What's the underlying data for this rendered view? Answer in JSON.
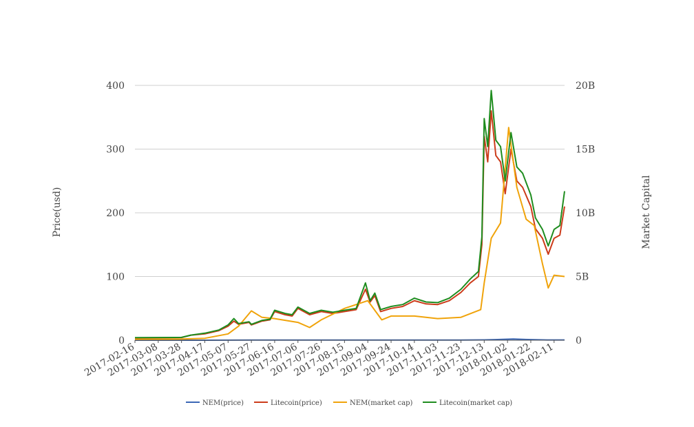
{
  "chart_data": {
    "type": "line",
    "title": "",
    "ylabel_left": "Price(usd)",
    "ylabel_right": "Market Capital",
    "xlabel": "",
    "grid": true,
    "legend_position": "bottom",
    "x_range": [
      "2017-02-16",
      "2018-02-20"
    ],
    "ylim_left": [
      0,
      400
    ],
    "ylim_right": [
      0,
      20000000000
    ],
    "y_ticks_left": [
      "0",
      "100",
      "200",
      "300",
      "400"
    ],
    "y_ticks_right": [
      "0",
      "5B",
      "10B",
      "15B",
      "20B"
    ],
    "x_ticks": [
      "2017-02-16",
      "2017-03-08",
      "2017-03-28",
      "2017-04-17",
      "2017-05-07",
      "2017-05-27",
      "2017-06-16",
      "2017-07-06",
      "2017-07-26",
      "2017-08-15",
      "2017-09-04",
      "2017-09-24",
      "2017-10-14",
      "2017-11-03",
      "2017-11-23",
      "2017-12-13",
      "2018-01-02",
      "2018-01-22",
      "2018-02-11"
    ],
    "series": [
      {
        "name": "NEM(price)",
        "axis": "left",
        "color": "#3a66b5",
        "points": [
          [
            "2017-02-16",
            0.005
          ],
          [
            "2017-04-17",
            0.02
          ],
          [
            "2017-05-27",
            0.2
          ],
          [
            "2017-07-26",
            0.18
          ],
          [
            "2017-09-04",
            0.35
          ],
          [
            "2017-10-14",
            0.2
          ],
          [
            "2017-11-23",
            0.25
          ],
          [
            "2017-12-13",
            0.5
          ],
          [
            "2017-12-22",
            1.0
          ],
          [
            "2018-01-07",
            1.9
          ],
          [
            "2018-01-15",
            1.3
          ],
          [
            "2018-02-05",
            0.4
          ],
          [
            "2018-02-20",
            0.45
          ]
        ]
      },
      {
        "name": "Litecoin(price)",
        "axis": "left",
        "color": "#cc3b1a",
        "points": [
          [
            "2017-02-16",
            3.8
          ],
          [
            "2017-03-20",
            4
          ],
          [
            "2017-03-28",
            4.2
          ],
          [
            "2017-04-05",
            8
          ],
          [
            "2017-04-17",
            10
          ],
          [
            "2017-04-29",
            15
          ],
          [
            "2017-05-07",
            22
          ],
          [
            "2017-05-12",
            30
          ],
          [
            "2017-05-16",
            25
          ],
          [
            "2017-05-25",
            28
          ],
          [
            "2017-05-27",
            24
          ],
          [
            "2017-06-05",
            30
          ],
          [
            "2017-06-12",
            32
          ],
          [
            "2017-06-16",
            45
          ],
          [
            "2017-06-25",
            40
          ],
          [
            "2017-07-01",
            38
          ],
          [
            "2017-07-06",
            50
          ],
          [
            "2017-07-16",
            40
          ],
          [
            "2017-07-26",
            45
          ],
          [
            "2017-08-05",
            42
          ],
          [
            "2017-08-15",
            45
          ],
          [
            "2017-08-25",
            48
          ],
          [
            "2017-09-02",
            80
          ],
          [
            "2017-09-06",
            60
          ],
          [
            "2017-09-10",
            70
          ],
          [
            "2017-09-15",
            45
          ],
          [
            "2017-09-24",
            50
          ],
          [
            "2017-10-04",
            53
          ],
          [
            "2017-10-14",
            62
          ],
          [
            "2017-10-24",
            57
          ],
          [
            "2017-11-03",
            56
          ],
          [
            "2017-11-13",
            62
          ],
          [
            "2017-11-23",
            75
          ],
          [
            "2017-12-01",
            90
          ],
          [
            "2017-12-08",
            100
          ],
          [
            "2017-12-11",
            150
          ],
          [
            "2017-12-13",
            320
          ],
          [
            "2017-12-16",
            280
          ],
          [
            "2017-12-19",
            360
          ],
          [
            "2017-12-23",
            290
          ],
          [
            "2017-12-27",
            280
          ],
          [
            "2017-12-31",
            230
          ],
          [
            "2018-01-05",
            300
          ],
          [
            "2018-01-10",
            250
          ],
          [
            "2018-01-15",
            240
          ],
          [
            "2018-01-22",
            210
          ],
          [
            "2018-01-26",
            175
          ],
          [
            "2018-02-01",
            160
          ],
          [
            "2018-02-06",
            135
          ],
          [
            "2018-02-11",
            160
          ],
          [
            "2018-02-16",
            165
          ],
          [
            "2018-02-20",
            210
          ]
        ]
      },
      {
        "name": "NEM(market cap)",
        "axis": "right",
        "color": "#f0a30a",
        "points": [
          [
            "2017-02-16",
            80000000
          ],
          [
            "2017-03-28",
            90000000
          ],
          [
            "2017-04-17",
            150000000
          ],
          [
            "2017-05-07",
            500000000
          ],
          [
            "2017-05-16",
            1100000000
          ],
          [
            "2017-05-27",
            2300000000
          ],
          [
            "2017-06-05",
            1800000000
          ],
          [
            "2017-06-16",
            1700000000
          ],
          [
            "2017-07-06",
            1400000000
          ],
          [
            "2017-07-16",
            1000000000
          ],
          [
            "2017-07-26",
            1600000000
          ],
          [
            "2017-08-15",
            2500000000
          ],
          [
            "2017-09-04",
            3100000000
          ],
          [
            "2017-09-16",
            1600000000
          ],
          [
            "2017-09-24",
            1900000000
          ],
          [
            "2017-10-14",
            1900000000
          ],
          [
            "2017-11-03",
            1700000000
          ],
          [
            "2017-11-23",
            1800000000
          ],
          [
            "2017-12-10",
            2400000000
          ],
          [
            "2017-12-13",
            4500000000
          ],
          [
            "2017-12-19",
            8000000000
          ],
          [
            "2017-12-27",
            9200000000
          ],
          [
            "2018-01-03",
            16700000000
          ],
          [
            "2018-01-10",
            12000000000
          ],
          [
            "2018-01-18",
            9500000000
          ],
          [
            "2018-01-25",
            9000000000
          ],
          [
            "2018-02-01",
            6000000000
          ],
          [
            "2018-02-06",
            4100000000
          ],
          [
            "2018-02-11",
            5100000000
          ],
          [
            "2018-02-20",
            5000000000
          ]
        ]
      },
      {
        "name": "Litecoin(market cap)",
        "axis": "right",
        "color": "#1e8c1e",
        "points": [
          [
            "2017-02-16",
            200000000
          ],
          [
            "2017-03-28",
            220000000
          ],
          [
            "2017-04-05",
            400000000
          ],
          [
            "2017-04-17",
            550000000
          ],
          [
            "2017-04-29",
            800000000
          ],
          [
            "2017-05-07",
            1200000000
          ],
          [
            "2017-05-12",
            1700000000
          ],
          [
            "2017-05-16",
            1300000000
          ],
          [
            "2017-05-25",
            1450000000
          ],
          [
            "2017-05-27",
            1250000000
          ],
          [
            "2017-06-05",
            1550000000
          ],
          [
            "2017-06-12",
            1650000000
          ],
          [
            "2017-06-16",
            2350000000
          ],
          [
            "2017-06-25",
            2100000000
          ],
          [
            "2017-07-01",
            2000000000
          ],
          [
            "2017-07-06",
            2600000000
          ],
          [
            "2017-07-16",
            2100000000
          ],
          [
            "2017-07-26",
            2350000000
          ],
          [
            "2017-08-05",
            2200000000
          ],
          [
            "2017-08-15",
            2350000000
          ],
          [
            "2017-08-25",
            2500000000
          ],
          [
            "2017-09-02",
            4500000000
          ],
          [
            "2017-09-06",
            3100000000
          ],
          [
            "2017-09-10",
            3700000000
          ],
          [
            "2017-09-15",
            2400000000
          ],
          [
            "2017-09-24",
            2650000000
          ],
          [
            "2017-10-04",
            2800000000
          ],
          [
            "2017-10-14",
            3300000000
          ],
          [
            "2017-10-24",
            3000000000
          ],
          [
            "2017-11-03",
            2950000000
          ],
          [
            "2017-11-13",
            3300000000
          ],
          [
            "2017-11-23",
            4000000000
          ],
          [
            "2017-12-01",
            4800000000
          ],
          [
            "2017-12-08",
            5400000000
          ],
          [
            "2017-12-11",
            8100000000
          ],
          [
            "2017-12-13",
            17400000000
          ],
          [
            "2017-12-16",
            15200000000
          ],
          [
            "2017-12-19",
            19600000000
          ],
          [
            "2017-12-23",
            15700000000
          ],
          [
            "2017-12-27",
            15200000000
          ],
          [
            "2017-12-31",
            12500000000
          ],
          [
            "2018-01-05",
            16300000000
          ],
          [
            "2018-01-10",
            13600000000
          ],
          [
            "2018-01-15",
            13100000000
          ],
          [
            "2018-01-22",
            11400000000
          ],
          [
            "2018-01-26",
            9600000000
          ],
          [
            "2018-02-01",
            8700000000
          ],
          [
            "2018-02-06",
            7400000000
          ],
          [
            "2018-02-11",
            8700000000
          ],
          [
            "2018-02-16",
            9000000000
          ],
          [
            "2018-02-20",
            11700000000
          ]
        ]
      }
    ]
  }
}
